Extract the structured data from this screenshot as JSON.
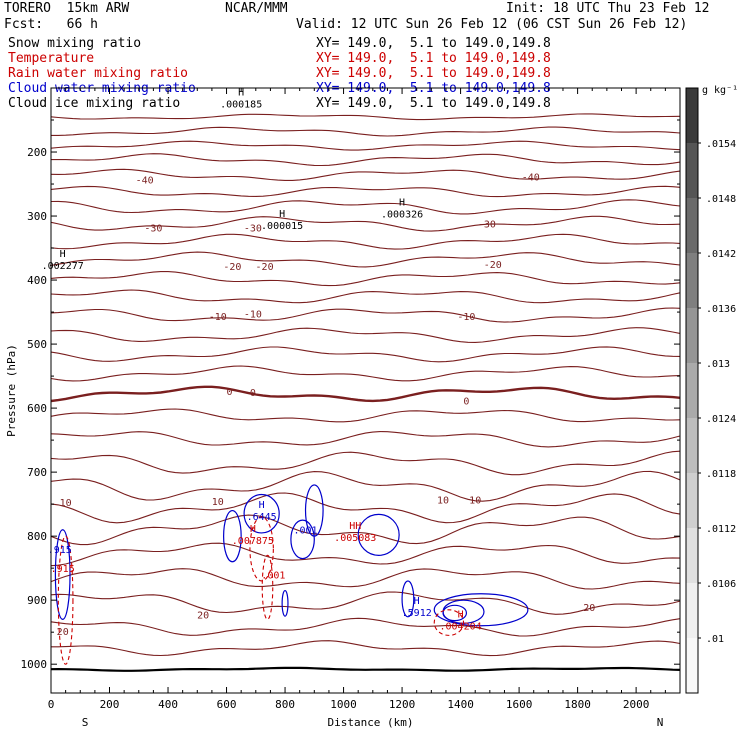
{
  "header": {
    "model": "TORERO  15km ARW",
    "center": "NCAR/MMM",
    "init": "Init: 18 UTC Thu 23 Feb 12",
    "fcst": "Fcst:   66 h",
    "valid": "Valid: 12 UTC Sun 26 Feb 12 (06 CST Sun 26 Feb 12)"
  },
  "fields": [
    {
      "name": "Snow mixing ratio",
      "xy": "XY= 149.0,  5.1 to 149.0,149.8",
      "color": "#000000"
    },
    {
      "name": "Temperature",
      "xy": "XY= 149.0,  5.1 to 149.0,149.8",
      "color": "#cc0000"
    },
    {
      "name": "Rain water mixing ratio",
      "xy": "XY= 149.0,  5.1 to 149.0,149.8",
      "color": "#cc0000"
    },
    {
      "name": "Cloud water mixing ratio",
      "xy": "XY= 149.0,  5.1 to 149.0,149.8",
      "color": "#0000cc"
    },
    {
      "name": "Cloud ice mixing ratio",
      "xy": "XY= 149.0,  5.1 to 149.0,149.8",
      "color": "#000000"
    }
  ],
  "chart_data": {
    "type": "contour",
    "xlabel": "Distance (km)",
    "ylabel": "Pressure (hPa)",
    "x_ticks": [
      0,
      200,
      400,
      600,
      800,
      1000,
      1200,
      1400,
      1600,
      1800,
      2000
    ],
    "x_minor_step": 50,
    "xlim": [
      0,
      2150
    ],
    "y_ticks": [
      200,
      300,
      400,
      500,
      600,
      700,
      800,
      900,
      1000
    ],
    "ylim": [
      100,
      1045
    ],
    "y_scale": "linear",
    "x_end_labels": {
      "left": "S",
      "right": "N"
    },
    "colorbar": {
      "unit": "g kg⁻¹",
      "ticks": [
        ".0154",
        ".0148",
        ".0142",
        ".0136",
        ".013",
        ".0124",
        ".0118",
        ".0112",
        ".0106",
        ".01"
      ],
      "colors": [
        "#3a3a3a",
        "#555555",
        "#6a6a6a",
        "#7f7f7f",
        "#959595",
        "#aaaaaa",
        "#bdbdbd",
        "#cfcfcf",
        "#e0e0e0",
        "#efefef",
        "#f8f8f8"
      ]
    },
    "isotherms": [
      {
        "p": 145,
        "amp": 2
      },
      {
        "p": 168,
        "amp": 3
      },
      {
        "p": 190,
        "amp": 3
      },
      {
        "p": 212,
        "amp": 4
      },
      {
        "p": 236,
        "amp": 4
      },
      {
        "p": 262,
        "amp": 4
      },
      {
        "p": 286,
        "amp": 5
      },
      {
        "p": 312,
        "amp": 5
      },
      {
        "p": 340,
        "amp": 5
      },
      {
        "p": 368,
        "amp": 5
      },
      {
        "p": 398,
        "amp": 5
      },
      {
        "p": 426,
        "amp": 5
      },
      {
        "p": 455,
        "amp": 5
      },
      {
        "p": 486,
        "amp": 5
      },
      {
        "p": 516,
        "amp": 5
      },
      {
        "p": 546,
        "amp": 5
      },
      {
        "p": 578,
        "amp": 5,
        "bold": true
      },
      {
        "p": 612,
        "amp": 5
      },
      {
        "p": 648,
        "amp": 6
      },
      {
        "p": 686,
        "amp": 8
      },
      {
        "p": 722,
        "amp": 10
      },
      {
        "p": 756,
        "amp": 10
      },
      {
        "p": 790,
        "amp": 10
      },
      {
        "p": 828,
        "amp": 8
      },
      {
        "p": 866,
        "amp": 8
      },
      {
        "p": 904,
        "amp": 8
      },
      {
        "p": 942,
        "amp": 6
      },
      {
        "p": 975,
        "amp": 5
      },
      {
        "p": 1008,
        "amp": 1,
        "surface": true
      }
    ],
    "temperature_labels": [
      {
        "text": "-40",
        "x": 320,
        "p": 243
      },
      {
        "text": "-40",
        "x": 1640,
        "p": 238
      },
      {
        "text": "-30",
        "x": 350,
        "p": 318
      },
      {
        "text": "-30",
        "x": 690,
        "p": 318
      },
      {
        "text": "-30",
        "x": 1490,
        "p": 312
      },
      {
        "text": "-20",
        "x": 620,
        "p": 378
      },
      {
        "text": "-20",
        "x": 730,
        "p": 378
      },
      {
        "text": "-20",
        "x": 1510,
        "p": 375
      },
      {
        "text": "-10",
        "x": 570,
        "p": 456
      },
      {
        "text": "-10",
        "x": 690,
        "p": 452
      },
      {
        "text": "-10",
        "x": 1420,
        "p": 456
      },
      {
        "text": "0",
        "x": 610,
        "p": 573
      },
      {
        "text": "0",
        "x": 690,
        "p": 575
      },
      {
        "text": "0",
        "x": 1420,
        "p": 588
      },
      {
        "text": "10",
        "x": 50,
        "p": 747
      },
      {
        "text": "10",
        "x": 570,
        "p": 745
      },
      {
        "text": "10",
        "x": 1340,
        "p": 743
      },
      {
        "text": "10",
        "x": 1450,
        "p": 743
      },
      {
        "text": "20",
        "x": 40,
        "p": 948
      },
      {
        "text": "20",
        "x": 520,
        "p": 922
      },
      {
        "text": "20",
        "x": 1840,
        "p": 911
      }
    ],
    "extrema_labels": [
      {
        "marker": "H",
        "value": ".000185",
        "x": 650,
        "p": 118,
        "color": "#000000"
      },
      {
        "marker": "H",
        "value": ".000015",
        "x": 790,
        "p": 308,
        "color": "#000000"
      },
      {
        "marker": "H",
        "value": ".000326",
        "x": 1200,
        "p": 290,
        "color": "#000000"
      },
      {
        "marker": "H",
        "value": ".002277",
        "x": 40,
        "p": 370,
        "color": "#000000"
      },
      {
        "marker": "H",
        "value": ".6445",
        "x": 720,
        "p": 762,
        "color": "#0000cc"
      },
      {
        "marker": "H",
        "value": ".007875",
        "x": 690,
        "p": 800,
        "color": "#cc0000"
      },
      {
        "marker": "HH",
        "value": ".005083",
        "x": 1040,
        "p": 795,
        "color": "#cc0000"
      },
      {
        "marker": "H",
        "value": ".5912",
        "x": 1250,
        "p": 912,
        "color": "#0000cc"
      },
      {
        "marker": "H",
        "value": ".004204",
        "x": 1400,
        "p": 933,
        "color": "#cc0000"
      }
    ],
    "other_labels": [
      {
        "text": ".001",
        "x": 870,
        "p": 790,
        "color": "#0000cc"
      },
      {
        "text": ".001",
        "x": 760,
        "p": 860,
        "color": "#cc0000"
      },
      {
        "text": ".915",
        "x": 30,
        "p": 820,
        "color": "#0000cc"
      },
      {
        "text": ".915",
        "x": 40,
        "p": 850,
        "color": "#cc0000"
      }
    ],
    "cloud_water_blobs": [
      {
        "x": 720,
        "p": 765,
        "rx": 60,
        "rp": 30
      },
      {
        "x": 900,
        "p": 760,
        "rx": 30,
        "rp": 40
      },
      {
        "x": 860,
        "p": 805,
        "rx": 40,
        "rp": 30
      },
      {
        "x": 1120,
        "p": 798,
        "rx": 70,
        "rp": 32
      },
      {
        "x": 620,
        "p": 800,
        "rx": 30,
        "rp": 40
      },
      {
        "x": 40,
        "p": 860,
        "rx": 25,
        "rp": 70
      },
      {
        "x": 1220,
        "p": 898,
        "rx": 20,
        "rp": 28
      },
      {
        "x": 800,
        "p": 905,
        "rx": 10,
        "rp": 20
      },
      {
        "x": 1470,
        "p": 915,
        "rx": 160,
        "rp": 25
      },
      {
        "x": 1410,
        "p": 918,
        "rx": 70,
        "rp": 18
      },
      {
        "x": 1380,
        "p": 920,
        "rx": 40,
        "rp": 12
      }
    ],
    "rain_water_blobs": [
      {
        "x": 720,
        "p": 820,
        "rx": 40,
        "rp": 50
      },
      {
        "x": 740,
        "p": 880,
        "rx": 18,
        "rp": 50
      },
      {
        "x": 50,
        "p": 900,
        "rx": 25,
        "rp": 100
      },
      {
        "x": 1360,
        "p": 935,
        "rx": 50,
        "rp": 20
      }
    ]
  }
}
